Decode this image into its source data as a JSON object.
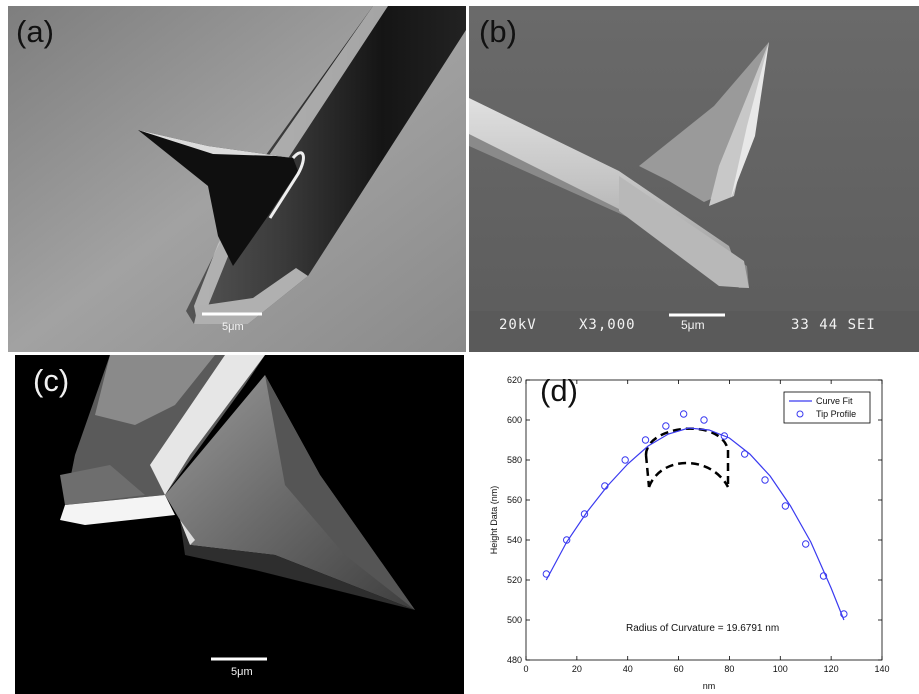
{
  "panels": {
    "a": {
      "label": "(a)",
      "scale_bar": "5μm"
    },
    "b": {
      "label": "(b)",
      "scale_bar": "5μm",
      "info": {
        "voltage": "20kV",
        "magnification": "X3,000",
        "id": "33 44 SEI"
      }
    },
    "c": {
      "label": "(c)",
      "scale_bar": "5μm"
    },
    "d": {
      "label": "(d)"
    }
  },
  "chart_data": {
    "type": "scatter",
    "xlabel": "nm",
    "ylabel": "Height Data (nm)",
    "xlim": [
      0,
      140
    ],
    "ylim": [
      480,
      620
    ],
    "xticks": [
      0,
      20,
      40,
      60,
      80,
      100,
      120,
      140
    ],
    "yticks": [
      480,
      500,
      520,
      540,
      560,
      580,
      600,
      620
    ],
    "annotation": "Radius of Curvature = 19.6791 nm",
    "legend_position": "top-right",
    "series": [
      {
        "name": "Curve Fit",
        "kind": "line",
        "color": "#3a3af0",
        "x": [
          8,
          16,
          24,
          32,
          40,
          48,
          56,
          64,
          72,
          80,
          88,
          96,
          104,
          112,
          120,
          125
        ],
        "y": [
          520,
          539,
          554,
          567,
          578,
          587,
          593,
          596,
          595,
          591,
          583,
          572,
          557,
          539,
          516,
          500
        ]
      },
      {
        "name": "Tip Profile",
        "kind": "markers",
        "color": "#3a3af0",
        "x": [
          8,
          16,
          23,
          31,
          39,
          47,
          55,
          62,
          70,
          78,
          86,
          94,
          102,
          110,
          117,
          125
        ],
        "y": [
          523,
          540,
          553,
          567,
          580,
          590,
          597,
          603,
          600,
          592,
          583,
          570,
          557,
          538,
          522,
          503
        ]
      }
    ]
  },
  "colors": {
    "curve": "#3a3af0",
    "dashed_outline": "#000000",
    "sem_background_a": "#8c8c8c",
    "sem_background_b": "#6e6e6e",
    "sem_background_c": "#000000"
  }
}
